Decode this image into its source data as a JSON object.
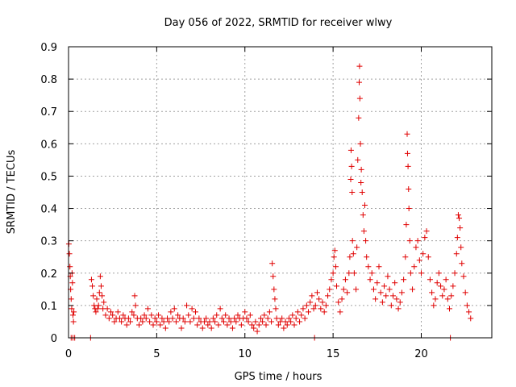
{
  "chart_data": {
    "type": "scatter",
    "title": "Day 056 of 2022, SRMTID for receiver wlwy",
    "xlabel": "GPS time / hours",
    "ylabel": "SRMTID / TECUs",
    "xlim": [
      0,
      24
    ],
    "ylim": [
      0,
      0.9
    ],
    "x_ticks": [
      0,
      5,
      10,
      15,
      20
    ],
    "x_tick_labels": [
      "0",
      "5",
      "10",
      "15",
      "20"
    ],
    "y_ticks": [
      0,
      0.1,
      0.2,
      0.3,
      0.4,
      0.5,
      0.6,
      0.7,
      0.8,
      0.9
    ],
    "y_tick_labels": [
      "0",
      "0.1",
      "0.2",
      "0.3",
      "0.4",
      "0.5",
      "0.6",
      "0.7",
      "0.8",
      "0.9"
    ],
    "grid": true,
    "marker": "+",
    "color": "#e00000",
    "series": [
      {
        "name": "SRMTID",
        "points": [
          [
            0.02,
            0.29
          ],
          [
            0.05,
            0.26
          ],
          [
            0.08,
            0.22
          ],
          [
            0.1,
            0.19
          ],
          [
            0.12,
            0.15
          ],
          [
            0.15,
            0.12
          ],
          [
            0.18,
            0.09
          ],
          [
            0.2,
            0.2
          ],
          [
            0.22,
            0.17
          ],
          [
            0.25,
            0.07
          ],
          [
            0.28,
            0.05
          ],
          [
            0.3,
            0.08
          ],
          [
            0.15,
            0.0
          ],
          [
            0.25,
            0.0
          ],
          [
            0.35,
            0.0
          ],
          [
            1.25,
            0.0
          ],
          [
            1.3,
            0.18
          ],
          [
            1.35,
            0.16
          ],
          [
            1.4,
            0.13
          ],
          [
            1.45,
            0.1
          ],
          [
            1.5,
            0.09
          ],
          [
            1.55,
            0.08
          ],
          [
            1.6,
            0.12
          ],
          [
            1.65,
            0.09
          ],
          [
            1.7,
            0.1
          ],
          [
            1.75,
            0.14
          ],
          [
            1.8,
            0.19
          ],
          [
            1.85,
            0.16
          ],
          [
            1.9,
            0.13
          ],
          [
            1.95,
            0.09
          ],
          [
            2.0,
            0.11
          ],
          [
            2.1,
            0.07
          ],
          [
            2.2,
            0.09
          ],
          [
            2.3,
            0.06
          ],
          [
            2.4,
            0.08
          ],
          [
            2.5,
            0.07
          ],
          [
            2.6,
            0.05
          ],
          [
            2.7,
            0.06
          ],
          [
            2.8,
            0.08
          ],
          [
            2.9,
            0.06
          ],
          [
            3.0,
            0.05
          ],
          [
            3.1,
            0.07
          ],
          [
            3.2,
            0.06
          ],
          [
            3.3,
            0.04
          ],
          [
            3.4,
            0.06
          ],
          [
            3.5,
            0.05
          ],
          [
            3.6,
            0.08
          ],
          [
            3.7,
            0.07
          ],
          [
            3.75,
            0.13
          ],
          [
            3.8,
            0.1
          ],
          [
            3.9,
            0.06
          ],
          [
            4.0,
            0.04
          ],
          [
            4.1,
            0.06
          ],
          [
            4.2,
            0.05
          ],
          [
            4.3,
            0.07
          ],
          [
            4.4,
            0.06
          ],
          [
            4.5,
            0.09
          ],
          [
            4.6,
            0.05
          ],
          [
            4.7,
            0.07
          ],
          [
            4.8,
            0.04
          ],
          [
            4.9,
            0.06
          ],
          [
            5.0,
            0.05
          ],
          [
            5.1,
            0.07
          ],
          [
            5.2,
            0.04
          ],
          [
            5.3,
            0.06
          ],
          [
            5.4,
            0.05
          ],
          [
            5.5,
            0.03
          ],
          [
            5.6,
            0.06
          ],
          [
            5.7,
            0.05
          ],
          [
            5.8,
            0.08
          ],
          [
            5.9,
            0.06
          ],
          [
            6.0,
            0.09
          ],
          [
            6.1,
            0.05
          ],
          [
            6.2,
            0.07
          ],
          [
            6.3,
            0.06
          ],
          [
            6.4,
            0.03
          ],
          [
            6.5,
            0.06
          ],
          [
            6.6,
            0.05
          ],
          [
            6.7,
            0.1
          ],
          [
            6.8,
            0.07
          ],
          [
            6.9,
            0.05
          ],
          [
            7.0,
            0.09
          ],
          [
            7.1,
            0.06
          ],
          [
            7.2,
            0.08
          ],
          [
            7.3,
            0.04
          ],
          [
            7.4,
            0.06
          ],
          [
            7.5,
            0.05
          ],
          [
            7.6,
            0.03
          ],
          [
            7.7,
            0.05
          ],
          [
            7.8,
            0.06
          ],
          [
            7.9,
            0.04
          ],
          [
            8.0,
            0.05
          ],
          [
            8.1,
            0.03
          ],
          [
            8.2,
            0.06
          ],
          [
            8.3,
            0.05
          ],
          [
            8.4,
            0.07
          ],
          [
            8.5,
            0.04
          ],
          [
            8.6,
            0.09
          ],
          [
            8.7,
            0.06
          ],
          [
            8.8,
            0.05
          ],
          [
            8.9,
            0.07
          ],
          [
            9.0,
            0.04
          ],
          [
            9.1,
            0.06
          ],
          [
            9.2,
            0.05
          ],
          [
            9.3,
            0.03
          ],
          [
            9.4,
            0.06
          ],
          [
            9.5,
            0.05
          ],
          [
            9.6,
            0.07
          ],
          [
            9.7,
            0.06
          ],
          [
            9.8,
            0.04
          ],
          [
            9.9,
            0.06
          ],
          [
            10.0,
            0.08
          ],
          [
            10.1,
            0.06
          ],
          [
            10.2,
            0.05
          ],
          [
            10.3,
            0.07
          ],
          [
            10.4,
            0.04
          ],
          [
            10.5,
            0.03
          ],
          [
            10.6,
            0.05
          ],
          [
            10.7,
            0.02
          ],
          [
            10.8,
            0.04
          ],
          [
            10.9,
            0.06
          ],
          [
            11.0,
            0.05
          ],
          [
            11.1,
            0.07
          ],
          [
            11.2,
            0.04
          ],
          [
            11.3,
            0.06
          ],
          [
            11.4,
            0.08
          ],
          [
            11.5,
            0.05
          ],
          [
            11.55,
            0.23
          ],
          [
            11.6,
            0.19
          ],
          [
            11.65,
            0.15
          ],
          [
            11.7,
            0.12
          ],
          [
            11.75,
            0.09
          ],
          [
            11.8,
            0.06
          ],
          [
            11.9,
            0.04
          ],
          [
            12.0,
            0.05
          ],
          [
            12.1,
            0.06
          ],
          [
            12.2,
            0.03
          ],
          [
            12.3,
            0.05
          ],
          [
            12.4,
            0.04
          ],
          [
            12.5,
            0.06
          ],
          [
            12.6,
            0.05
          ],
          [
            12.7,
            0.07
          ],
          [
            12.8,
            0.04
          ],
          [
            12.9,
            0.06
          ],
          [
            13.0,
            0.08
          ],
          [
            13.1,
            0.05
          ],
          [
            13.2,
            0.07
          ],
          [
            13.3,
            0.09
          ],
          [
            13.4,
            0.06
          ],
          [
            13.5,
            0.1
          ],
          [
            13.6,
            0.08
          ],
          [
            13.7,
            0.11
          ],
          [
            13.8,
            0.13
          ],
          [
            13.9,
            0.09
          ],
          [
            13.95,
            0.0
          ],
          [
            14.0,
            0.1
          ],
          [
            14.1,
            0.14
          ],
          [
            14.2,
            0.12
          ],
          [
            14.3,
            0.09
          ],
          [
            14.4,
            0.11
          ],
          [
            14.5,
            0.08
          ],
          [
            14.6,
            0.1
          ],
          [
            14.7,
            0.13
          ],
          [
            14.8,
            0.15
          ],
          [
            14.9,
            0.18
          ],
          [
            15.0,
            0.2
          ],
          [
            15.05,
            0.25
          ],
          [
            15.1,
            0.27
          ],
          [
            15.15,
            0.22
          ],
          [
            15.2,
            0.16
          ],
          [
            15.3,
            0.11
          ],
          [
            15.4,
            0.08
          ],
          [
            15.5,
            0.12
          ],
          [
            15.6,
            0.15
          ],
          [
            15.7,
            0.18
          ],
          [
            15.8,
            0.14
          ],
          [
            15.9,
            0.2
          ],
          [
            15.95,
            0.25
          ],
          [
            16.0,
            0.49
          ],
          [
            16.02,
            0.58
          ],
          [
            16.05,
            0.53
          ],
          [
            16.08,
            0.45
          ],
          [
            16.1,
            0.3
          ],
          [
            16.15,
            0.26
          ],
          [
            16.2,
            0.2
          ],
          [
            16.3,
            0.15
          ],
          [
            16.35,
            0.28
          ],
          [
            16.4,
            0.55
          ],
          [
            16.45,
            0.68
          ],
          [
            16.48,
            0.79
          ],
          [
            16.5,
            0.84
          ],
          [
            16.52,
            0.74
          ],
          [
            16.55,
            0.6
          ],
          [
            16.58,
            0.48
          ],
          [
            16.6,
            0.52
          ],
          [
            16.65,
            0.45
          ],
          [
            16.7,
            0.38
          ],
          [
            16.75,
            0.33
          ],
          [
            16.8,
            0.41
          ],
          [
            16.85,
            0.3
          ],
          [
            16.9,
            0.25
          ],
          [
            17.0,
            0.22
          ],
          [
            17.1,
            0.18
          ],
          [
            17.2,
            0.2
          ],
          [
            17.3,
            0.15
          ],
          [
            17.4,
            0.12
          ],
          [
            17.5,
            0.17
          ],
          [
            17.6,
            0.22
          ],
          [
            17.7,
            0.14
          ],
          [
            17.8,
            0.11
          ],
          [
            17.9,
            0.16
          ],
          [
            18.0,
            0.13
          ],
          [
            18.1,
            0.19
          ],
          [
            18.2,
            0.15
          ],
          [
            18.3,
            0.1
          ],
          [
            18.4,
            0.13
          ],
          [
            18.5,
            0.17
          ],
          [
            18.6,
            0.12
          ],
          [
            18.7,
            0.09
          ],
          [
            18.8,
            0.11
          ],
          [
            18.9,
            0.14
          ],
          [
            19.0,
            0.18
          ],
          [
            19.1,
            0.25
          ],
          [
            19.15,
            0.35
          ],
          [
            19.2,
            0.63
          ],
          [
            19.22,
            0.57
          ],
          [
            19.25,
            0.53
          ],
          [
            19.28,
            0.46
          ],
          [
            19.3,
            0.4
          ],
          [
            19.35,
            0.3
          ],
          [
            19.4,
            0.2
          ],
          [
            19.5,
            0.15
          ],
          [
            19.6,
            0.22
          ],
          [
            19.7,
            0.28
          ],
          [
            19.8,
            0.3
          ],
          [
            19.9,
            0.24
          ],
          [
            20.0,
            0.2
          ],
          [
            20.1,
            0.26
          ],
          [
            20.2,
            0.31
          ],
          [
            20.3,
            0.33
          ],
          [
            20.4,
            0.25
          ],
          [
            20.5,
            0.18
          ],
          [
            20.6,
            0.14
          ],
          [
            20.7,
            0.1
          ],
          [
            20.8,
            0.12
          ],
          [
            20.9,
            0.17
          ],
          [
            21.0,
            0.2
          ],
          [
            21.1,
            0.16
          ],
          [
            21.2,
            0.13
          ],
          [
            21.3,
            0.15
          ],
          [
            21.4,
            0.18
          ],
          [
            21.5,
            0.12
          ],
          [
            21.6,
            0.09
          ],
          [
            21.65,
            0.0
          ],
          [
            21.7,
            0.13
          ],
          [
            21.8,
            0.16
          ],
          [
            21.9,
            0.2
          ],
          [
            22.0,
            0.26
          ],
          [
            22.05,
            0.31
          ],
          [
            22.1,
            0.38
          ],
          [
            22.15,
            0.37
          ],
          [
            22.2,
            0.34
          ],
          [
            22.25,
            0.28
          ],
          [
            22.3,
            0.23
          ],
          [
            22.4,
            0.19
          ],
          [
            22.5,
            0.14
          ],
          [
            22.6,
            0.1
          ],
          [
            22.7,
            0.08
          ],
          [
            22.8,
            0.06
          ]
        ]
      }
    ]
  }
}
